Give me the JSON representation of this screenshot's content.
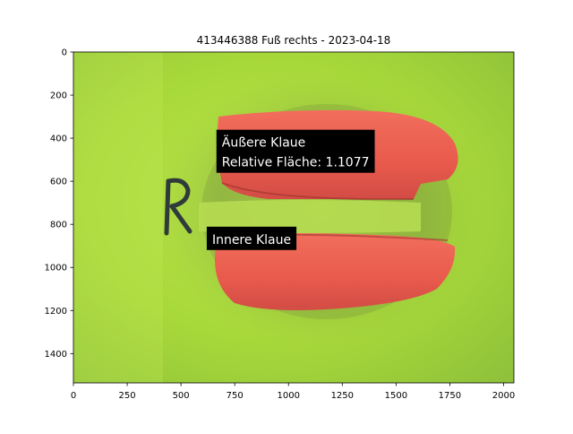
{
  "title": "413446388 Fuß rechts - 2023-04-18",
  "chart_data": {
    "type": "image",
    "title": "413446388 Fuß rechts - 2023-04-18",
    "xlim": [
      0,
      2048
    ],
    "ylim": [
      1536,
      0
    ],
    "x_ticks": [
      0,
      250,
      500,
      750,
      1000,
      1250,
      1500,
      1750,
      2000
    ],
    "y_ticks": [
      0,
      200,
      400,
      600,
      800,
      1000,
      1200,
      1400
    ],
    "grid": false,
    "image_marking": "R",
    "annotations": [
      {
        "lines": [
          "Äußere Klaue",
          "Relative Fläche: 1.1077"
        ],
        "x": 690,
        "y": 440
      },
      {
        "lines": [
          "Innere Klaue"
        ],
        "x": 645,
        "y": 890
      }
    ]
  }
}
